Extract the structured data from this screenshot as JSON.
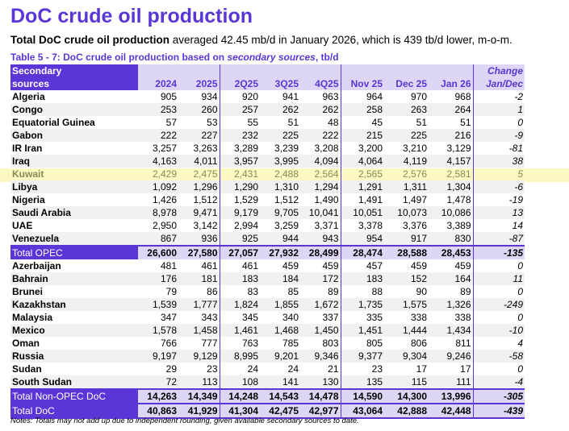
{
  "title": "DoC crude oil production",
  "subtitle": {
    "bold": "Total DoC crude oil production",
    "rest": " averaged 42.45 mb/d in January 2026, which is 439 tb/d lower, m-o-m."
  },
  "caption": {
    "a": "Table 5 - 7: DoC crude oil production based on ",
    "b": "secondary sources",
    "c": ", tb/d"
  },
  "header": {
    "label1": "Secondary",
    "label2": "sources",
    "cols": [
      "2024",
      "2025",
      "2Q25",
      "3Q25",
      "4Q25",
      "Nov 25",
      "Dec 25",
      "Jan 26"
    ],
    "change1": "Change",
    "change2": "Jan/Dec"
  },
  "opec": [
    {
      "name": "Algeria",
      "v": [
        "905",
        "934",
        "920",
        "941",
        "963",
        "964",
        "970",
        "968"
      ],
      "c": "-2"
    },
    {
      "name": "Congo",
      "v": [
        "253",
        "260",
        "257",
        "262",
        "262",
        "258",
        "263",
        "264"
      ],
      "c": "1"
    },
    {
      "name": "Equatorial Guinea",
      "v": [
        "57",
        "53",
        "55",
        "51",
        "48",
        "45",
        "51",
        "51"
      ],
      "c": "0"
    },
    {
      "name": "Gabon",
      "v": [
        "222",
        "227",
        "232",
        "225",
        "222",
        "215",
        "225",
        "216"
      ],
      "c": "-9"
    },
    {
      "name": "IR Iran",
      "v": [
        "3,257",
        "3,263",
        "3,289",
        "3,239",
        "3,208",
        "3,200",
        "3,210",
        "3,129"
      ],
      "c": "-81"
    },
    {
      "name": "Iraq",
      "v": [
        "4,163",
        "4,011",
        "3,957",
        "3,995",
        "4,094",
        "4,064",
        "4,119",
        "4,157"
      ],
      "c": "38"
    },
    {
      "name": "Kuwait",
      "v": [
        "2,429",
        "2,475",
        "2,431",
        "2,488",
        "2,564",
        "2,565",
        "2,576",
        "2,581"
      ],
      "c": "5"
    },
    {
      "name": "Libya",
      "v": [
        "1,092",
        "1,296",
        "1,290",
        "1,310",
        "1,294",
        "1,291",
        "1,311",
        "1,304"
      ],
      "c": "-6"
    },
    {
      "name": "Nigeria",
      "v": [
        "1,426",
        "1,512",
        "1,529",
        "1,512",
        "1,490",
        "1,491",
        "1,497",
        "1,478"
      ],
      "c": "-19"
    },
    {
      "name": "Saudi Arabia",
      "v": [
        "8,978",
        "9,471",
        "9,179",
        "9,705",
        "10,041",
        "10,051",
        "10,073",
        "10,086"
      ],
      "c": "13"
    },
    {
      "name": "UAE",
      "v": [
        "2,950",
        "3,142",
        "2,994",
        "3,259",
        "3,371",
        "3,378",
        "3,376",
        "3,389"
      ],
      "c": "14"
    },
    {
      "name": "Venezuela",
      "v": [
        "867",
        "936",
        "925",
        "944",
        "943",
        "954",
        "917",
        "830"
      ],
      "c": "-87"
    }
  ],
  "total_opec": {
    "name": "Total  OPEC",
    "v": [
      "26,600",
      "27,580",
      "27,057",
      "27,932",
      "28,499",
      "28,474",
      "28,588",
      "28,453"
    ],
    "c": "-135"
  },
  "nonopec": [
    {
      "name": "Azerbaijan",
      "v": [
        "481",
        "461",
        "461",
        "459",
        "459",
        "457",
        "459",
        "459"
      ],
      "c": "0"
    },
    {
      "name": "Bahrain",
      "v": [
        "176",
        "181",
        "183",
        "184",
        "172",
        "183",
        "152",
        "164"
      ],
      "c": "11"
    },
    {
      "name": "Brunei",
      "v": [
        "79",
        "86",
        "83",
        "85",
        "89",
        "88",
        "90",
        "89"
      ],
      "c": "0"
    },
    {
      "name": "Kazakhstan",
      "v": [
        "1,539",
        "1,777",
        "1,824",
        "1,855",
        "1,672",
        "1,735",
        "1,575",
        "1,326"
      ],
      "c": "-249"
    },
    {
      "name": "Malaysia",
      "v": [
        "347",
        "343",
        "345",
        "340",
        "337",
        "335",
        "338",
        "338"
      ],
      "c": "0"
    },
    {
      "name": "Mexico",
      "v": [
        "1,578",
        "1,458",
        "1,461",
        "1,468",
        "1,450",
        "1,451",
        "1,444",
        "1,434"
      ],
      "c": "-10"
    },
    {
      "name": "Oman",
      "v": [
        "766",
        "777",
        "763",
        "785",
        "803",
        "805",
        "806",
        "811"
      ],
      "c": "4"
    },
    {
      "name": "Russia",
      "v": [
        "9,197",
        "9,129",
        "8,995",
        "9,201",
        "9,346",
        "9,377",
        "9,304",
        "9,246"
      ],
      "c": "-58"
    },
    {
      "name": "Sudan",
      "v": [
        "29",
        "23",
        "24",
        "24",
        "21",
        "23",
        "17",
        "17"
      ],
      "c": "0"
    },
    {
      "name": "South Sudan",
      "v": [
        "72",
        "113",
        "108",
        "141",
        "130",
        "135",
        "115",
        "111"
      ],
      "c": "-4"
    }
  ],
  "total_nonopec": {
    "name": "Total Non-OPEC DoC",
    "v": [
      "14,263",
      "14,349",
      "14,248",
      "14,543",
      "14,478",
      "14,590",
      "14,300",
      "13,996"
    ],
    "c": "-305"
  },
  "total_doc": {
    "name": "Total DoC",
    "v": [
      "40,863",
      "41,929",
      "41,304",
      "42,475",
      "42,977",
      "43,064",
      "42,888",
      "42,448"
    ],
    "c": "-439"
  },
  "note": "Notes: Totals may not add up due to independent rounding, given available secondary sources to date.",
  "colors": {
    "accent": "#5b36d6",
    "header_bg": "#ddd6f5",
    "highlight": "#fbf8c2"
  }
}
